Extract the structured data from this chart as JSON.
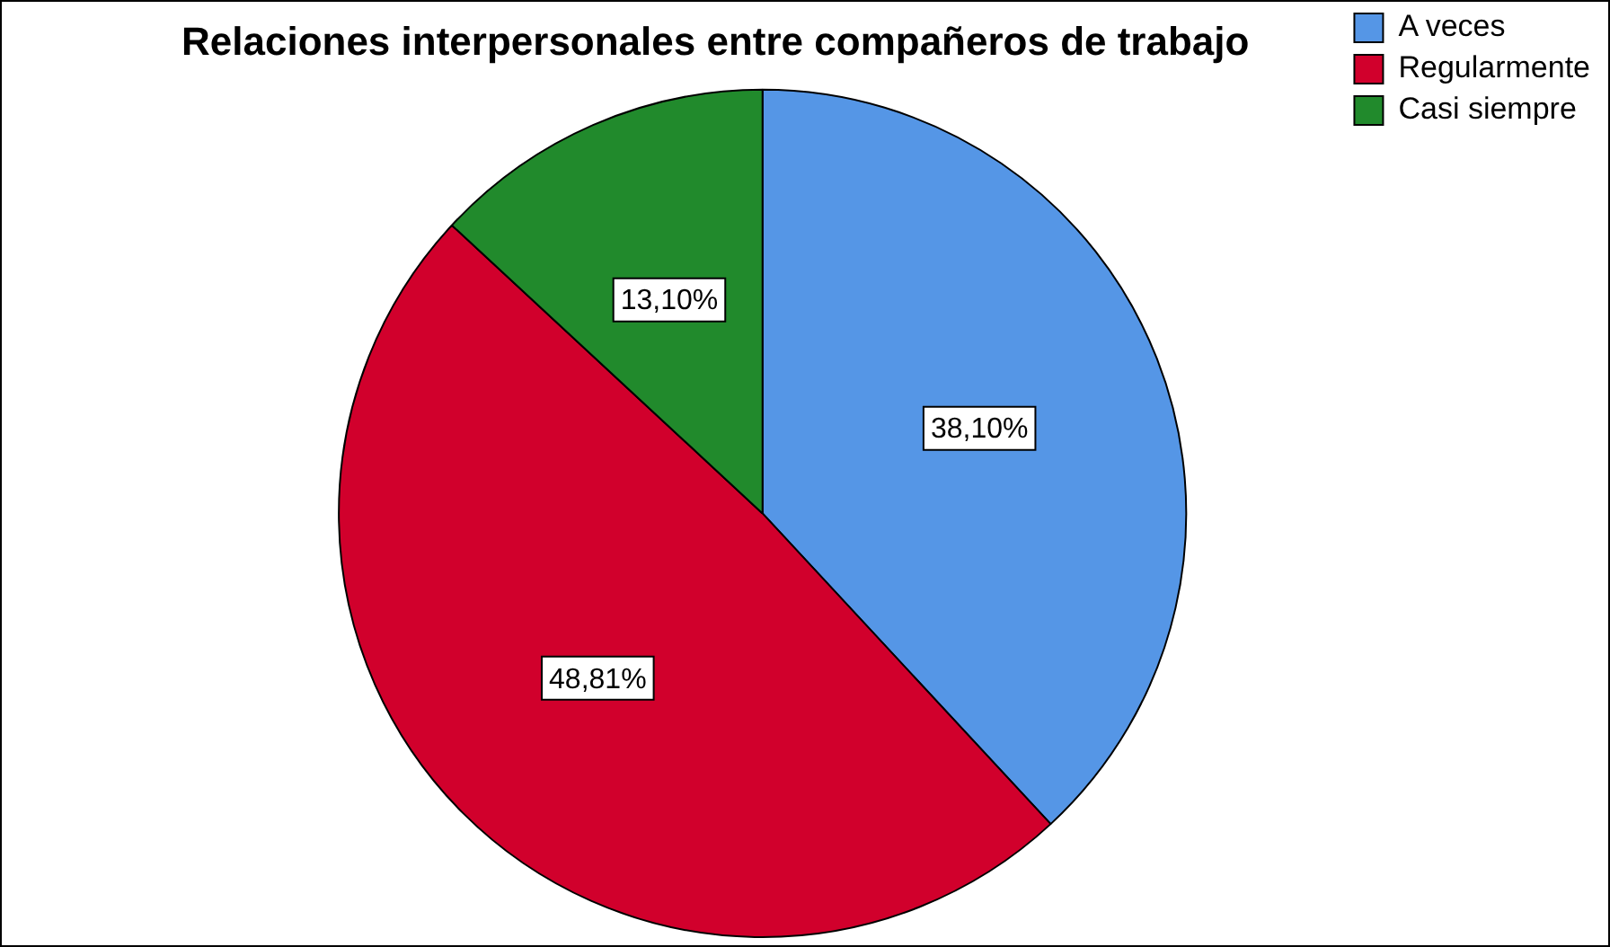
{
  "chart_data": {
    "type": "pie",
    "title": "Relaciones interpersonales entre compañeros de trabajo",
    "categories": [
      "A veces",
      "Regularmente",
      "Casi siempre"
    ],
    "values": [
      38.1,
      48.81,
      13.1
    ],
    "colors": [
      "#5596e6",
      "#d1002c",
      "#218a2c"
    ],
    "value_labels": [
      "38,10%",
      "48,81%",
      "13,10%"
    ],
    "legend": "top right"
  }
}
